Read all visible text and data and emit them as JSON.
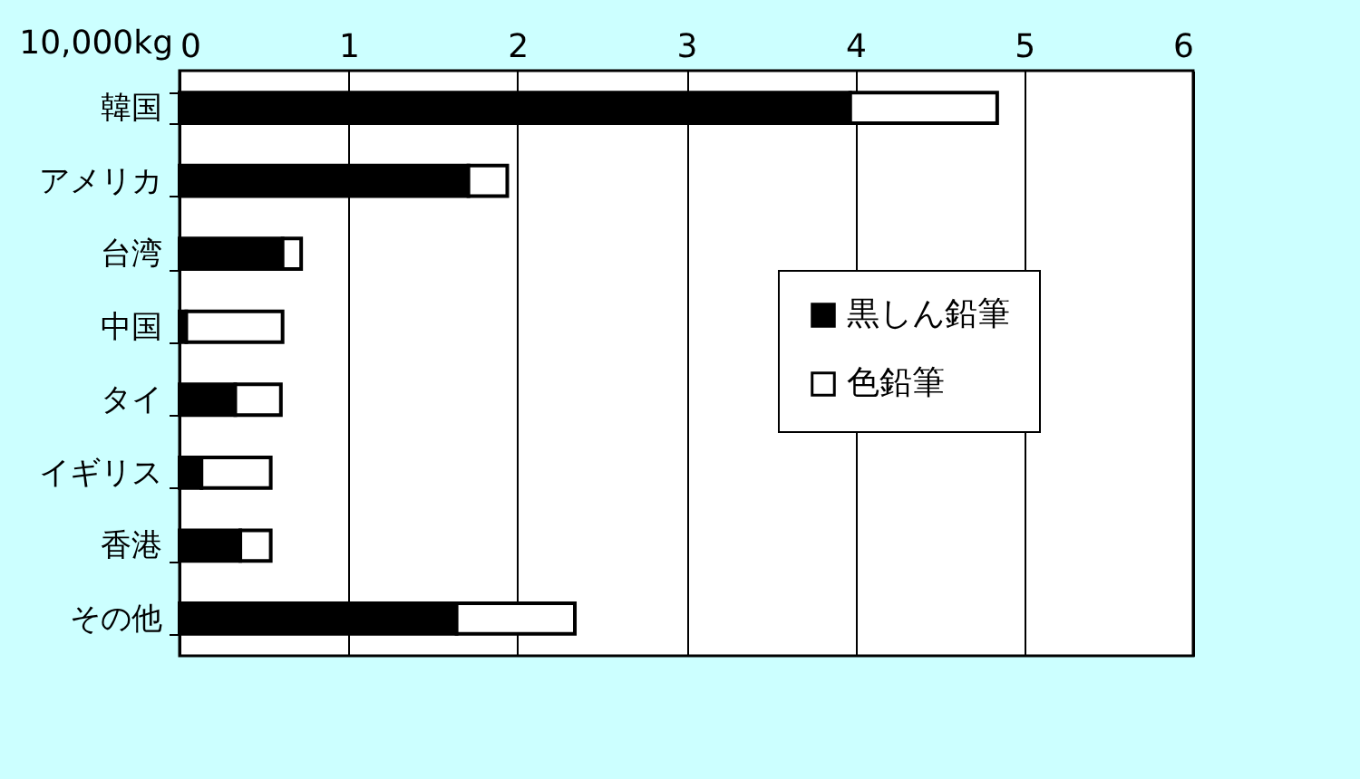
{
  "chart_data": {
    "type": "bar",
    "orientation": "horizontal",
    "stacked": true,
    "xlabel": "10,000kg",
    "categories": [
      "韓国",
      "アメリカ",
      "台湾",
      "中国",
      "タイ",
      "イギリス",
      "香港",
      "その他"
    ],
    "series": [
      {
        "name": "黒しん鉛筆",
        "color": "#000000",
        "values": [
          3.97,
          1.71,
          0.61,
          0.04,
          0.33,
          0.13,
          0.36,
          1.64
        ]
      },
      {
        "name": "色鉛筆",
        "color": "#ffffff",
        "values": [
          0.87,
          0.23,
          0.11,
          0.57,
          0.27,
          0.41,
          0.18,
          0.7
        ]
      }
    ],
    "xlim": [
      0,
      6
    ],
    "xticks": [
      0,
      1,
      2,
      3,
      4,
      5,
      6
    ],
    "grid": "x",
    "legend": "right"
  }
}
